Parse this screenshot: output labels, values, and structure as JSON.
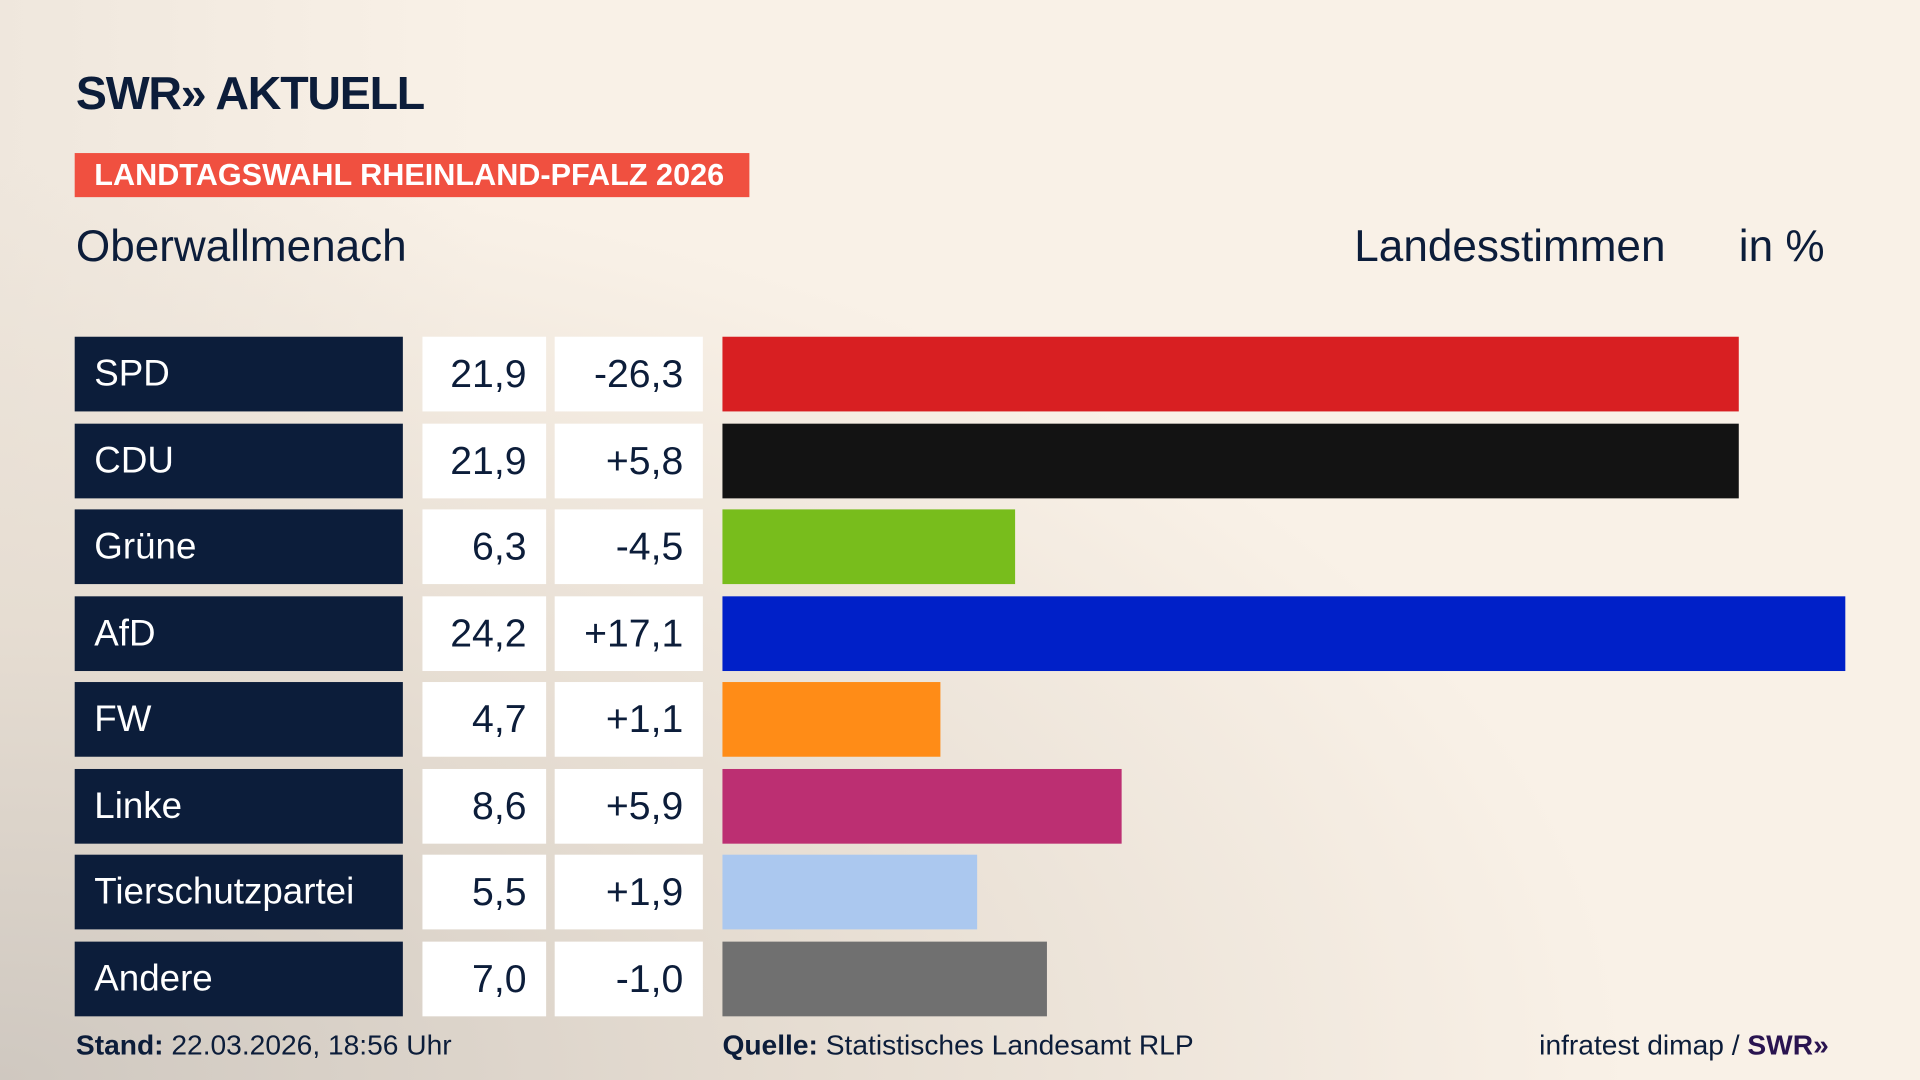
{
  "header": {
    "logo": "SWR» AKTUELL",
    "badge": "LANDTAGSWAHL RHEINLAND-PFALZ 2026",
    "region": "Oberwallmenach",
    "metric": "Landesstimmen",
    "unit": "in %"
  },
  "chart_data": {
    "type": "bar",
    "orientation": "horizontal",
    "xlim": [
      0,
      24.2
    ],
    "categories": [
      "SPD",
      "CDU",
      "Grüne",
      "AfD",
      "FW",
      "Linke",
      "Tierschutzpartei",
      "Andere"
    ],
    "values": [
      21.9,
      21.9,
      6.3,
      24.2,
      4.7,
      8.6,
      5.5,
      7.0
    ],
    "value_labels": [
      "21,9",
      "21,9",
      "6,3",
      "24,2",
      "4,7",
      "8,6",
      "5,5",
      "7,0"
    ],
    "diff_labels": [
      "-26,3",
      "+5,8",
      "-4,5",
      "+17,1",
      "+1,1",
      "+5,9",
      "+1,9",
      "-1,0"
    ],
    "colors": [
      "#d81f22",
      "#131313",
      "#78bd1c",
      "#0020c8",
      "#ff8c17",
      "#bc2f72",
      "#abc8ef",
      "#707070"
    ]
  },
  "footer": {
    "stand_label": "Stand:",
    "stand_value": "22.03.2026, 18:56 Uhr",
    "source_label": "Quelle:",
    "source_value": "Statistisches Landesamt RLP",
    "credit": "infratest dimap / ",
    "credit_logo": "SWR»"
  }
}
